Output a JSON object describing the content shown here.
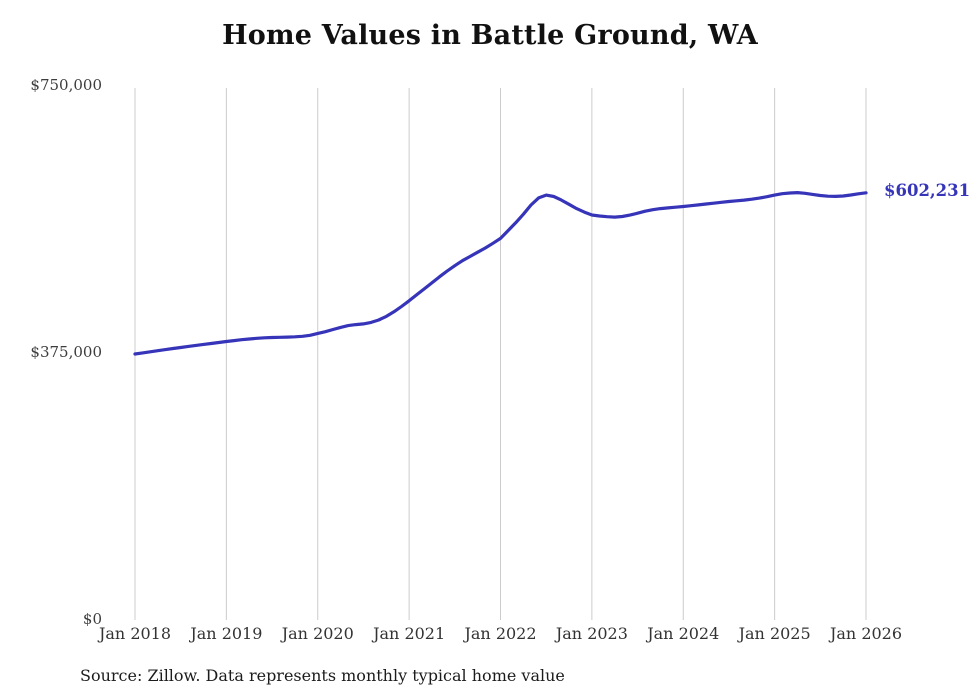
{
  "page": {
    "background_color": "#ffffff"
  },
  "chart_data": {
    "type": "line",
    "title": "Home Values in Battle Ground, WA",
    "source_note": "Source: Zillow. Data represents monthly typical home value",
    "end_label": "$602,231",
    "end_value": 602231,
    "line_color": "#3634b8",
    "grid_color": "#cccccc",
    "grid": "vertical-only",
    "legend": "none",
    "xlabel": "",
    "ylabel": "",
    "ylim": [
      0,
      750000
    ],
    "y_ticks": [
      {
        "label": "$750,000",
        "value": 750000
      },
      {
        "label": "$375,000",
        "value": 375000
      },
      {
        "label": "$0",
        "value": 0
      }
    ],
    "x_tick_labels": [
      "Jan 2018",
      "Jan 2019",
      "Jan 2020",
      "Jan 2021",
      "Jan 2022",
      "Jan 2023",
      "Jan 2024",
      "Jan 2025",
      "Jan 2026"
    ],
    "x_start_month": "2018-01",
    "x_end_month": "2026-01",
    "cadence": "monthly",
    "series": [
      {
        "name": "Typical home value",
        "unit": "USD",
        "monthly_values": [
          375000,
          376500,
          378100,
          379600,
          381200,
          382700,
          384200,
          385700,
          387100,
          388500,
          389800,
          391200,
          392600,
          393900,
          395100,
          396200,
          397100,
          397800,
          398300,
          398600,
          398800,
          399200,
          400000,
          401400,
          404000,
          406500,
          409500,
          412500,
          415000,
          416500,
          417500,
          419500,
          423000,
          428000,
          434500,
          442000,
          450000,
          458500,
          467000,
          475500,
          484000,
          492000,
          499500,
          506500,
          512500,
          518500,
          524500,
          531000,
          538000,
          549000,
          560000,
          572000,
          585000,
          595000,
          599000,
          597000,
          592000,
          586000,
          580000,
          575000,
          571000,
          569500,
          568500,
          568000,
          568800,
          570800,
          573500,
          576300,
          578500,
          580000,
          581000,
          582000,
          583000,
          584000,
          585200,
          586400,
          587600,
          588800,
          590000,
          591000,
          592000,
          593200,
          594800,
          596800,
          599000,
          601000,
          602000,
          602500,
          601500,
          600000,
          598500,
          597500,
          597200,
          597800,
          599200,
          600800,
          602231
        ]
      }
    ]
  }
}
